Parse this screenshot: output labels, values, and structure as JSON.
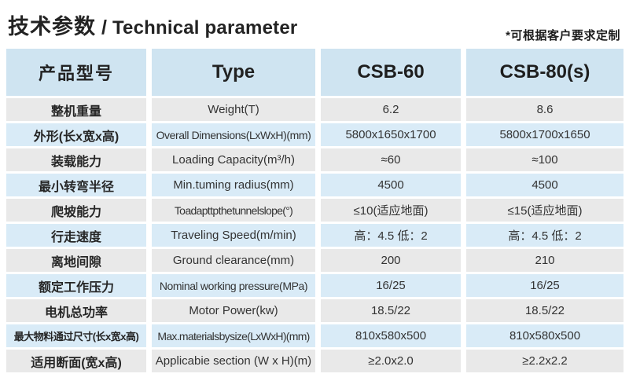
{
  "page": {
    "title_cn": "技术参数",
    "title_divider": "/",
    "title_en": "Technical parameter",
    "note": "*可根据客户要求定制"
  },
  "colors": {
    "header_blue": "#cfe4f1",
    "row_blue": "#d9ebf7",
    "row_gray": "#e9e9e9",
    "text_dark": "#222222"
  },
  "table": {
    "headers": {
      "product_model_cn": "产品型号",
      "type_label": "Type",
      "model_1": "CSB-60",
      "model_2": "CSB-80(s)"
    },
    "rows": [
      {
        "cn": "整机重量",
        "en": "Weight(T)",
        "csb60": "6.2",
        "csb80": "8.6"
      },
      {
        "cn": "外形(长x宽x高)",
        "en": "Overall Dimensions(LxWxH)(mm)",
        "csb60": "5800x1650x1700",
        "csb80": "5800x1700x1650"
      },
      {
        "cn": "装载能力",
        "en": "Loading Capacity(m³/h)",
        "csb60": "≈60",
        "csb80": "≈100"
      },
      {
        "cn": "最小转弯半径",
        "en": "Min.tuming radius(mm)",
        "csb60": "4500",
        "csb80": "4500"
      },
      {
        "cn": "爬坡能力",
        "en": "To adapt tp the tunnel slope(°)",
        "csb60": "≤10(适应地面)",
        "csb80": "≤15(适应地面)"
      },
      {
        "cn": "行走速度",
        "en": "Traveling Speed(m/min)",
        "csb60": "高：4.5 低：2",
        "csb80": "高：4.5 低：2"
      },
      {
        "cn": "离地间隙",
        "en": "Ground clearance(mm)",
        "csb60": "200",
        "csb80": "210"
      },
      {
        "cn": "额定工作压力",
        "en": "Nominal working pressure(MPa)",
        "csb60": "16/25",
        "csb80": "16/25"
      },
      {
        "cn": "电机总功率",
        "en": "Motor Power(kw)",
        "csb60": "18.5/22",
        "csb80": "18.5/22"
      },
      {
        "cn": "最大物料通过尺寸(长x宽x高)",
        "en": "Max.materials by size(LxWxH)(mm)",
        "csb60": "810x580x500",
        "csb80": "810x580x500"
      },
      {
        "cn": "适用断面(宽x高)",
        "en": "Applicabie section (W x H)(m)",
        "csb60": "≥2.0x2.0",
        "csb80": "≥2.2x2.2"
      }
    ]
  }
}
